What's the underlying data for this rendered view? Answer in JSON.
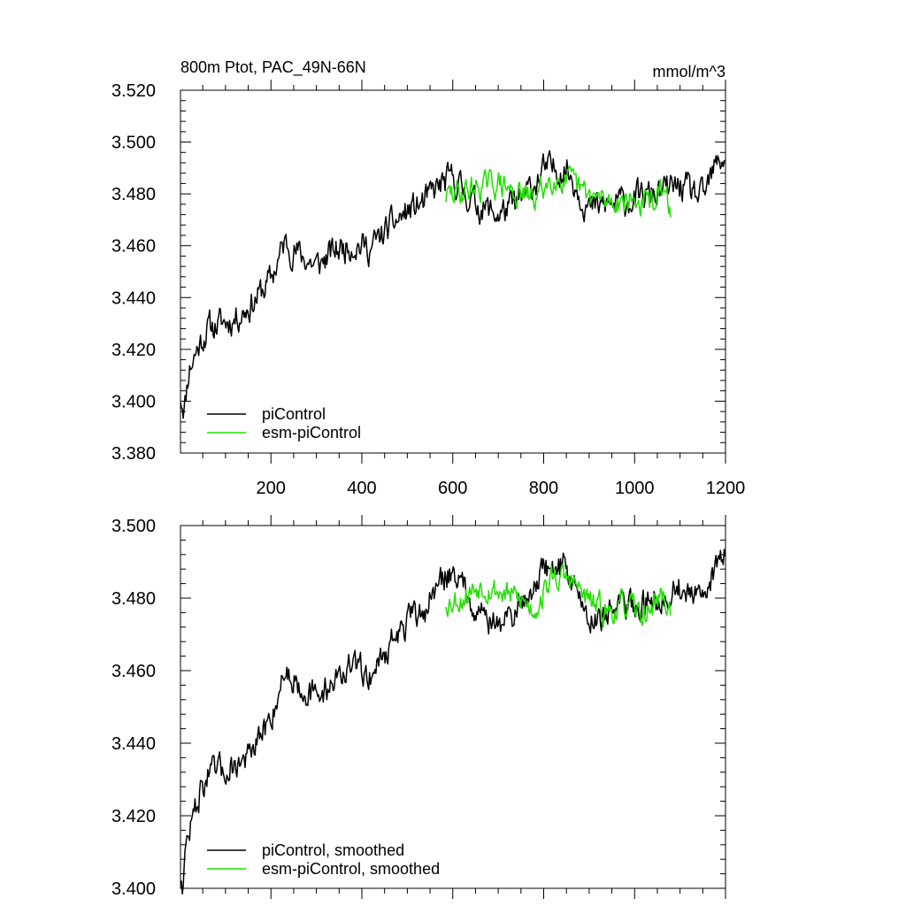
{
  "figure": {
    "title_left": "800m Ptot, PAC_49N-66N",
    "title_right": "mmol/m^3"
  },
  "chart_data": [
    {
      "type": "line",
      "title": "800m Ptot, PAC_49N-66N",
      "units": "mmol/m^3",
      "xlim": [
        1,
        1200
      ],
      "ylim": [
        3.38,
        3.52
      ],
      "xticks": [
        200,
        400,
        600,
        800,
        1000,
        1200
      ],
      "yticks": [
        3.38,
        3.4,
        3.42,
        3.44,
        3.46,
        3.48,
        3.5,
        3.52
      ],
      "ytick_labels": [
        "3.380",
        "3.400",
        "3.420",
        "3.440",
        "3.460",
        "3.480",
        "3.500",
        "3.520"
      ],
      "legend": {
        "position": "bottom-left",
        "entries": [
          "piControl",
          "esm-piControl"
        ]
      },
      "series": [
        {
          "name": "piControl",
          "color": "#000000",
          "noise": 0.0048,
          "seed": 11,
          "anchors_x": [
            1,
            10,
            20,
            40,
            60,
            90,
            120,
            160,
            200,
            230,
            260,
            300,
            340,
            380,
            420,
            460,
            500,
            540,
            570,
            600,
            650,
            700,
            750,
            800,
            850,
            900,
            950,
            1000,
            1050,
            1100,
            1150,
            1180,
            1200
          ],
          "anchors_y": [
            3.402,
            3.398,
            3.413,
            3.421,
            3.428,
            3.43,
            3.432,
            3.438,
            3.447,
            3.461,
            3.457,
            3.452,
            3.458,
            3.461,
            3.459,
            3.467,
            3.473,
            3.477,
            3.483,
            3.486,
            3.476,
            3.472,
            3.477,
            3.489,
            3.49,
            3.474,
            3.476,
            3.478,
            3.48,
            3.483,
            3.478,
            3.491,
            3.495
          ]
        },
        {
          "name": "esm-piControl",
          "color": "#22e000",
          "noise": 0.0042,
          "seed": 29,
          "anchors_x": [
            585,
            620,
            660,
            700,
            740,
            780,
            820,
            860,
            900,
            940,
            980,
            1020,
            1060,
            1080
          ],
          "anchors_y": [
            3.479,
            3.481,
            3.483,
            3.484,
            3.48,
            3.478,
            3.487,
            3.484,
            3.479,
            3.477,
            3.478,
            3.476,
            3.48,
            3.475
          ]
        }
      ]
    },
    {
      "type": "line",
      "title": "",
      "xlim": [
        1,
        1200
      ],
      "ylim": [
        3.4,
        3.5
      ],
      "xticks": [
        200,
        400,
        600,
        800,
        1000,
        1200
      ],
      "yticks": [
        3.4,
        3.42,
        3.44,
        3.46,
        3.48,
        3.5
      ],
      "ytick_labels": [
        "3.400",
        "3.420",
        "3.440",
        "3.460",
        "3.480",
        "3.500"
      ],
      "legend": {
        "position": "bottom-left",
        "entries": [
          "piControl, smoothed",
          "esm-piControl, smoothed"
        ]
      },
      "series": [
        {
          "name": "piControl, smoothed",
          "color": "#000000",
          "noise": 0.0034,
          "seed": 47,
          "anchors_x": [
            1,
            6,
            12,
            20,
            30,
            40,
            60,
            90,
            120,
            160,
            200,
            230,
            260,
            300,
            340,
            380,
            420,
            460,
            500,
            540,
            570,
            600,
            650,
            700,
            750,
            800,
            850,
            900,
            950,
            1000,
            1050,
            1100,
            1150,
            1180,
            1200
          ],
          "anchors_y": [
            3.403,
            3.402,
            3.41,
            3.416,
            3.42,
            3.425,
            3.431,
            3.432,
            3.434,
            3.437,
            3.447,
            3.46,
            3.457,
            3.452,
            3.458,
            3.461,
            3.459,
            3.467,
            3.473,
            3.477,
            3.484,
            3.488,
            3.478,
            3.472,
            3.478,
            3.488,
            3.489,
            3.474,
            3.477,
            3.478,
            3.48,
            3.483,
            3.478,
            3.49,
            3.494
          ]
        },
        {
          "name": "esm-piControl, smoothed",
          "color": "#22e000",
          "noise": 0.003,
          "seed": 53,
          "anchors_x": [
            585,
            620,
            660,
            700,
            740,
            780,
            820,
            860,
            900,
            940,
            980,
            1020,
            1060,
            1080
          ],
          "anchors_y": [
            3.479,
            3.48,
            3.484,
            3.482,
            3.48,
            3.477,
            3.486,
            3.485,
            3.479,
            3.476,
            3.478,
            3.475,
            3.481,
            3.476
          ]
        }
      ]
    }
  ]
}
